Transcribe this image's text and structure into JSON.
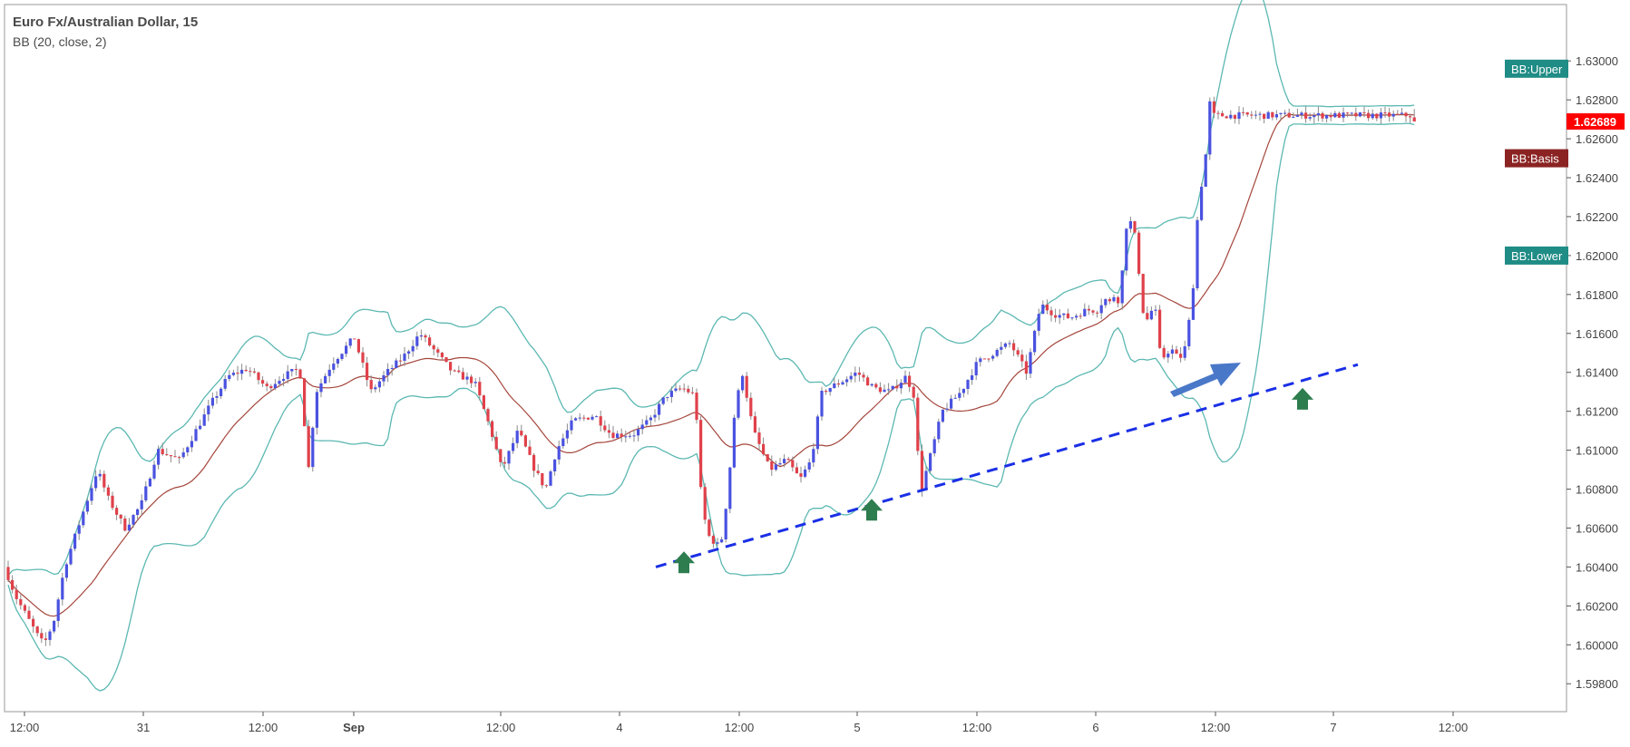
{
  "header": {
    "title": "Euro Fx/Australian Dollar, 15",
    "indicator": "BB (20, close, 2)"
  },
  "price_axis": {
    "ticks": [
      "1.63000",
      "1.62800",
      "1.62600",
      "1.62400",
      "1.62200",
      "1.62000",
      "1.61800",
      "1.61600",
      "1.61400",
      "1.61200",
      "1.61000",
      "1.60800",
      "1.60600",
      "1.60400",
      "1.60200",
      "1.60000",
      "1.59800"
    ],
    "current_price": "1.62689"
  },
  "time_axis": {
    "ticks": [
      "12:00",
      "31",
      "12:00",
      "Sep",
      "12:00",
      "4",
      "12:00",
      "5",
      "12:00",
      "6",
      "12:00",
      "7",
      "12:00"
    ]
  },
  "legend": {
    "upper": "BB:Upper",
    "basis": "BB:Basis",
    "lower": "BB:Lower"
  },
  "colors": {
    "up_candle": "#4a52e0",
    "down_candle": "#e0414b",
    "wick": "#8a8a8a",
    "band": "#5cb8b2",
    "basis": "#a4453b",
    "upper_badge": "#1f8c85",
    "lower_badge": "#1f8c85",
    "basis_badge": "#8b2323",
    "price_badge": "#ff0000",
    "trendline": "#1a2fe6",
    "arrow_green": "#2e7d4f",
    "arrow_blue": "#4a78c9"
  },
  "chart_data": {
    "type": "candlestick",
    "symbol": "Euro Fx/Australian Dollar",
    "interval": "15",
    "ylim": [
      1.5968,
      1.6315
    ],
    "xlim": [
      0,
      1.0
    ],
    "path_points": [
      [
        0.0,
        1.604
      ],
      [
        0.01,
        1.6025
      ],
      [
        0.02,
        1.6015
      ],
      [
        0.03,
        1.6005
      ],
      [
        0.036,
        1.6
      ],
      [
        0.045,
        1.6012
      ],
      [
        0.055,
        1.604
      ],
      [
        0.07,
        1.6065
      ],
      [
        0.085,
        1.609
      ],
      [
        0.095,
        1.6075
      ],
      [
        0.11,
        1.606
      ],
      [
        0.125,
        1.6072
      ],
      [
        0.14,
        1.61
      ],
      [
        0.16,
        1.6095
      ],
      [
        0.175,
        1.611
      ],
      [
        0.19,
        1.6125
      ],
      [
        0.205,
        1.6138
      ],
      [
        0.222,
        1.6142
      ],
      [
        0.24,
        1.6132
      ],
      [
        0.255,
        1.6138
      ],
      [
        0.27,
        1.6142
      ],
      [
        0.278,
        1.609
      ],
      [
        0.285,
        1.613
      ],
      [
        0.3,
        1.6145
      ],
      [
        0.32,
        1.6158
      ],
      [
        0.335,
        1.613
      ],
      [
        0.35,
        1.614
      ],
      [
        0.365,
        1.6148
      ],
      [
        0.38,
        1.616
      ],
      [
        0.395,
        1.615
      ],
      [
        0.41,
        1.614
      ],
      [
        0.43,
        1.6135
      ],
      [
        0.445,
        1.611
      ],
      [
        0.455,
        1.609
      ],
      [
        0.47,
        1.611
      ],
      [
        0.485,
        1.609
      ],
      [
        0.495,
        1.608
      ],
      [
        0.505,
        1.61
      ],
      [
        0.52,
        1.6115
      ],
      [
        0.54,
        1.6118
      ],
      [
        0.555,
        1.6108
      ],
      [
        0.575,
        1.6108
      ],
      [
        0.59,
        1.6115
      ],
      [
        0.605,
        1.6128
      ],
      [
        0.62,
        1.6132
      ],
      [
        0.632,
        1.6128
      ],
      [
        0.638,
        1.607
      ],
      [
        0.645,
        1.6055
      ],
      [
        0.655,
        1.605
      ],
      [
        0.662,
        1.608
      ],
      [
        0.668,
        1.612
      ],
      [
        0.675,
        1.614
      ],
      [
        0.685,
        1.611
      ],
      [
        0.7,
        1.609
      ],
      [
        0.715,
        1.6095
      ],
      [
        0.728,
        1.6085
      ],
      [
        0.738,
        1.6095
      ],
      [
        0.748,
        1.613
      ],
      [
        0.765,
        1.6135
      ],
      [
        0.78,
        1.614
      ],
      [
        0.795,
        1.6132
      ],
      [
        0.81,
        1.613
      ],
      [
        0.825,
        1.6138
      ],
      [
        0.832,
        1.6128
      ],
      [
        0.838,
        1.6078
      ],
      [
        0.846,
        1.6095
      ],
      [
        0.858,
        1.612
      ],
      [
        0.875,
        1.613
      ],
      [
        0.89,
        1.6145
      ],
      [
        0.905,
        1.615
      ],
      [
        0.92,
        1.6155
      ],
      [
        0.935,
        1.614
      ],
      [
        0.948,
        1.6175
      ],
      [
        0.96,
        1.617
      ],
      [
        0.975,
        1.6168
      ],
      [
        0.99,
        1.6172
      ],
      [
        1.0,
        1.6172
      ]
    ],
    "path_points_2": [
      [
        0.0,
        1.6172
      ],
      [
        0.02,
        1.6178
      ],
      [
        0.045,
        1.6175
      ],
      [
        0.06,
        1.6185
      ],
      [
        0.07,
        1.6168
      ],
      [
        0.082,
        1.6205
      ],
      [
        0.095,
        1.622
      ],
      [
        0.11,
        1.6215
      ],
      [
        0.125,
        1.6205
      ],
      [
        0.135,
        1.618
      ],
      [
        0.15,
        1.6165
      ],
      [
        0.165,
        1.617
      ],
      [
        0.18,
        1.6175
      ],
      [
        0.19,
        1.616
      ],
      [
        0.2,
        1.6145
      ],
      [
        0.215,
        1.615
      ],
      [
        0.232,
        1.6152
      ],
      [
        0.25,
        1.6148
      ],
      [
        0.27,
        1.6148
      ],
      [
        0.285,
        1.6162
      ],
      [
        0.3,
        1.6182
      ],
      [
        0.315,
        1.622
      ],
      [
        0.33,
        1.624
      ],
      [
        0.34,
        1.625
      ],
      [
        0.35,
        1.6282
      ],
      [
        0.36,
        1.6272
      ]
    ],
    "notes": "Price path of EUR/AUD 15-minute candles, x as fraction of the visible time span for the first segment (until 6 Sep) and the continuation; y in price units.",
    "bollinger": {
      "period": 20,
      "source": "close",
      "stddev": 2
    },
    "last_price": 1.62689,
    "annotations": {
      "trendline": {
        "from": [
          "4",
          1.604
        ],
        "to": [
          "7",
          1.6144
        ],
        "style": "dashed"
      },
      "support_arrows": 3,
      "pointer_arrow": 1
    }
  }
}
